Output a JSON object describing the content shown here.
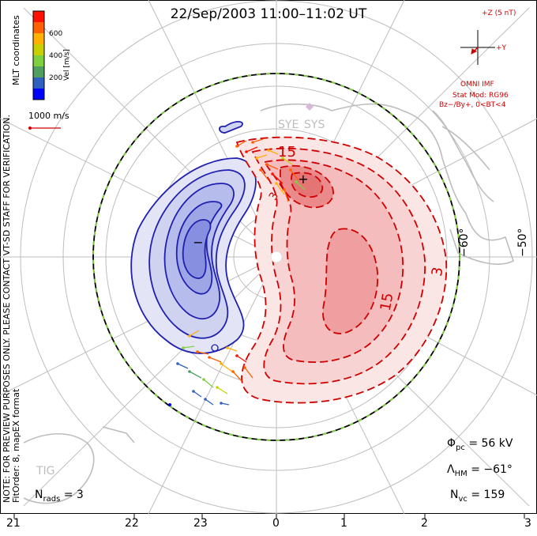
{
  "title": "22/Sep/2003 11:00–11:02 UT",
  "colorbar": {
    "ticks": [
      "600",
      "400",
      "200"
    ],
    "label": "Vel [m/s]",
    "colors": [
      "#0000ff",
      "#2f5fbf",
      "#4f9f5f",
      "#7fd03f",
      "#c8d000",
      "#ffb000",
      "#ff6000",
      "#ff1000"
    ]
  },
  "coordinate_label": "MLT coordinates",
  "watermark": "NOTE: FOR PREVIEW PURPOSES ONLY. PLEASE CONTACT VT-SD STAFF FOR VERIFICATION.",
  "fit_order": "FitOrder: 8, mapEX format",
  "vector_scale": "1000 m/s",
  "imf": {
    "scale": "+Z (5 nT)",
    "y_label": "+Y",
    "source": "OMNI IMF",
    "model": "Stat Mod: RG96",
    "condition": "Bz−/By+, 0<BT<4",
    "color": "#d00000"
  },
  "stations": {
    "sye": "SYE",
    "sys": "SYS",
    "tig": "TIG"
  },
  "contour_labels": [
    "15",
    "15",
    "3",
    "3"
  ],
  "lat_labels": [
    "−60°",
    "−50°"
  ],
  "mlt_labels": [
    "21",
    "22",
    "23",
    "0",
    "1",
    "2",
    "3"
  ],
  "stats": {
    "phi_pc_sym": "Φ",
    "phi_pc_sub": "pc",
    "phi_pc": "= 56 kV",
    "lambda_hm_sym": "Λ",
    "lambda_hm_sub": "HM",
    "lambda_hm": "= −61°",
    "n_vc_sym": "N",
    "n_vc_sub": "vc",
    "n_vc": "= 159",
    "n_rads_sym": "N",
    "n_rads_sub": "rads",
    "n_rads": "= 3"
  },
  "convection": {
    "negative_color": "#2020b0",
    "positive_color": "#d00000"
  }
}
